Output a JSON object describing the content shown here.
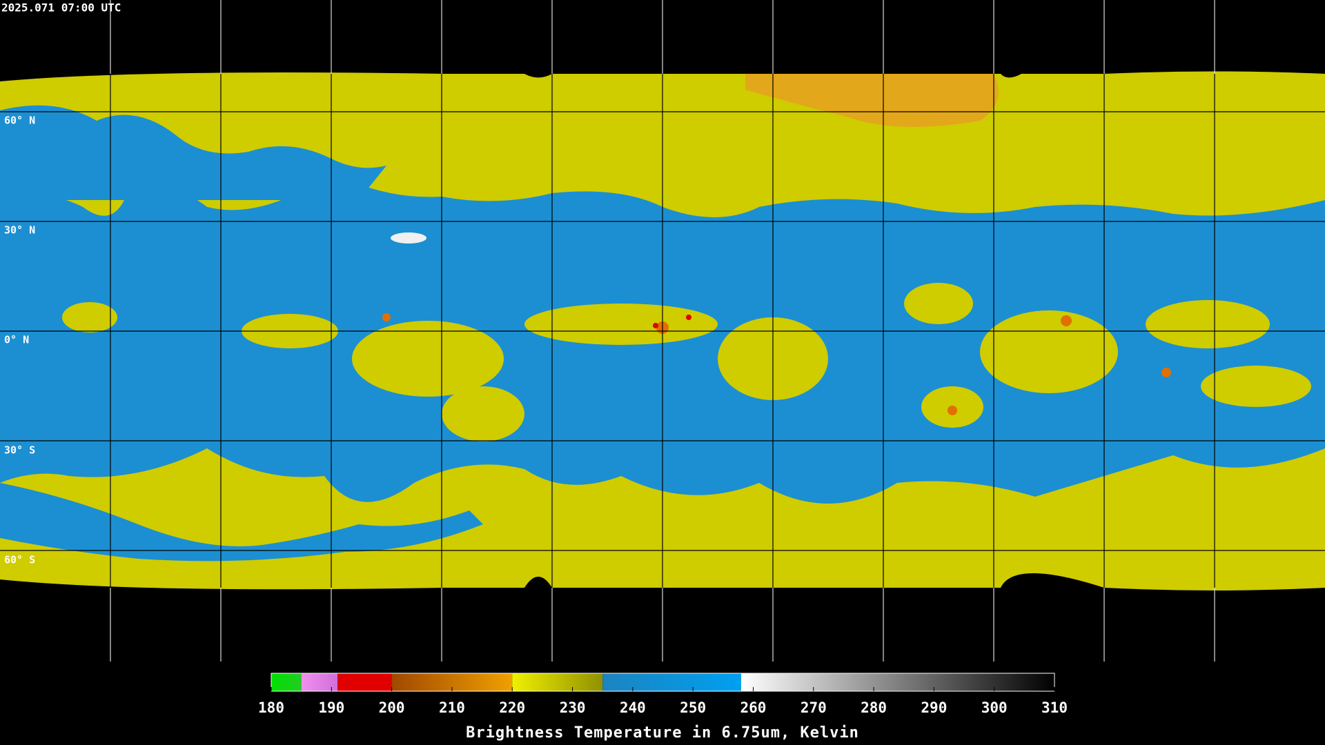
{
  "timestamp": "2025.071 07:00 UTC",
  "lat_labels": [
    "60° N",
    "30° N",
    "0° N",
    "30° S",
    "60° S"
  ],
  "colorbar": {
    "title": "Brightness Temperature in 6.75um, Kelvin",
    "lim": [
      180,
      310
    ],
    "ticks": [
      180,
      190,
      200,
      210,
      220,
      230,
      240,
      250,
      260,
      270,
      280,
      290,
      300,
      310
    ],
    "stops": [
      {
        "from": 180,
        "to": 185,
        "color": "#00e000",
        "color2": "#22cc22"
      },
      {
        "from": 185,
        "to": 191,
        "color": "#f090f0",
        "color2": "#d070d8"
      },
      {
        "from": 191,
        "to": 200,
        "color": "#e00000",
        "color2": "#e00000"
      },
      {
        "from": 200,
        "to": 220,
        "color": "#a04800",
        "color2": "#f0a000"
      },
      {
        "from": 220,
        "to": 235,
        "color": "#f0f000",
        "color2": "#909000"
      },
      {
        "from": 235,
        "to": 258,
        "color": "#1c84c0",
        "color2": "#00a0f0"
      },
      {
        "from": 258,
        "to": 310,
        "color": "#ffffff",
        "color2": "#000000"
      }
    ]
  }
}
